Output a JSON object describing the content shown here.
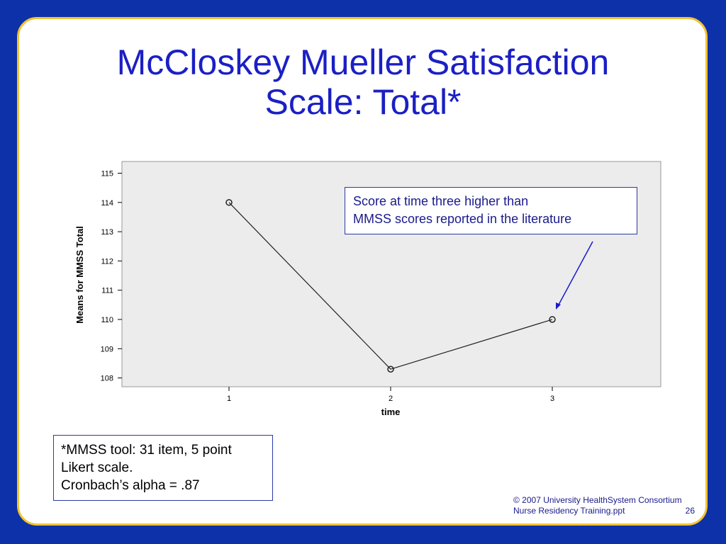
{
  "slide": {
    "title_line1": "McCloskey Mueller Satisfaction",
    "title_line2": "Scale: Total*",
    "callout_line1": "Score at time three higher than",
    "callout_line2": "MMSS scores reported in the literature",
    "note_line1": "*MMSS tool: 31 item, 5 point",
    "note_line2": "Likert scale.",
    "note_line3": "Cronbach’s alpha = .87",
    "footer_line1": "© 2007 University HealthSystem Consortium",
    "footer_line2": "Nurse Residency Training.ppt",
    "page_number": "26"
  },
  "colors": {
    "background": "#0c31a8",
    "slide_border": "#f2c232",
    "title": "#1b1fc4",
    "plot_background": "#ececec",
    "arrow": "#1a1ad0"
  },
  "chart_data": {
    "type": "line",
    "title": "",
    "xlabel": "time",
    "ylabel": "Means for MMSS Total",
    "categories": [
      "1",
      "2",
      "3"
    ],
    "values": [
      114.0,
      108.3,
      110.0
    ],
    "yticks": [
      "108",
      "109",
      "110",
      "111",
      "112",
      "113",
      "114",
      "115"
    ],
    "ylim": [
      107.7,
      115.4
    ],
    "grid": false,
    "marker": "open-circle"
  }
}
